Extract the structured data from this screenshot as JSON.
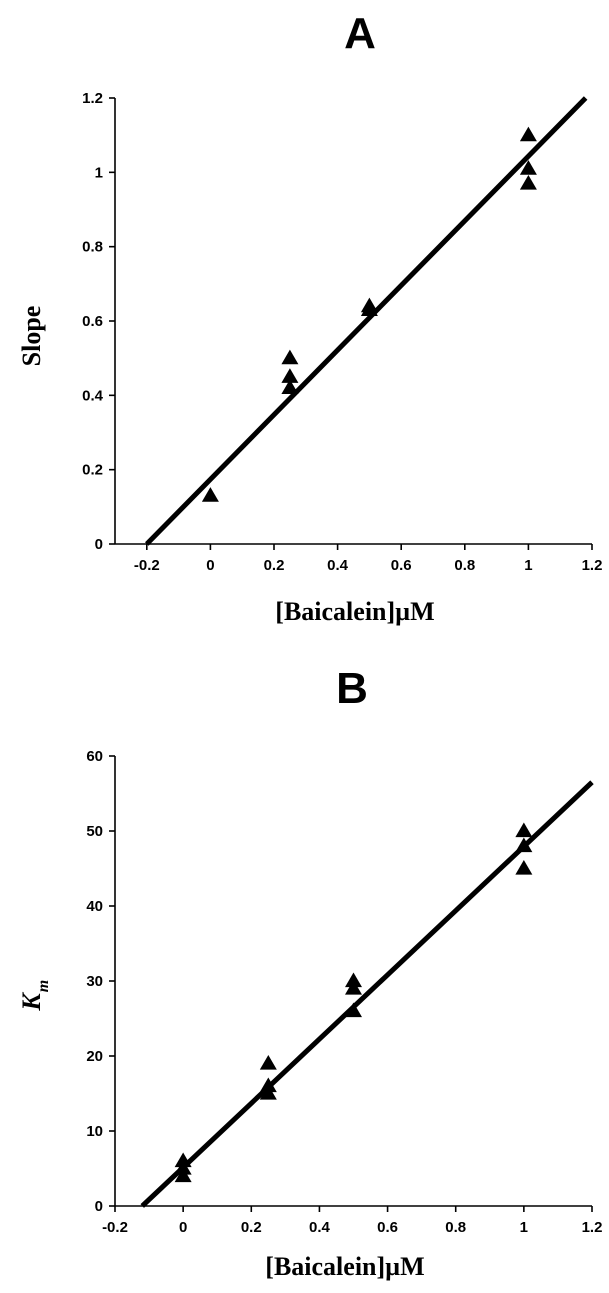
{
  "chart_data": [
    {
      "type": "scatter",
      "panel_label": "A",
      "xlabel": "[Baicalein]µM",
      "ylabel": "Slope",
      "ylabel_sub": "",
      "xlim": [
        -0.3,
        1.2
      ],
      "ylim": [
        0,
        1.2
      ],
      "xticks": [
        -0.2,
        0,
        0.2,
        0.4,
        0.6,
        0.8,
        1,
        1.2
      ],
      "xtick_labels": [
        "-0.2",
        "0",
        "0.2",
        "0.4",
        "0.6",
        "0.8",
        "1",
        "1.2"
      ],
      "yticks": [
        0,
        0.2,
        0.4,
        0.6,
        0.8,
        1,
        1.2
      ],
      "ytick_labels": [
        "0",
        "0.2",
        "0.4",
        "0.6",
        "0.8",
        "1",
        "1.2"
      ],
      "grid": false,
      "marker": "triangle",
      "points": [
        {
          "x": 0,
          "y": 0.13
        },
        {
          "x": 0.25,
          "y": 0.5
        },
        {
          "x": 0.25,
          "y": 0.45
        },
        {
          "x": 0.25,
          "y": 0.42
        },
        {
          "x": 0.5,
          "y": 0.64
        },
        {
          "x": 0.5,
          "y": 0.63
        },
        {
          "x": 1,
          "y": 1.1
        },
        {
          "x": 1,
          "y": 1.01
        },
        {
          "x": 1,
          "y": 0.97
        }
      ],
      "fit_line": {
        "x": [
          -0.2,
          1.18
        ],
        "y": [
          0,
          1.2
        ]
      }
    },
    {
      "type": "scatter",
      "panel_label": "B",
      "xlabel": "[Baicalein]µM",
      "ylabel": "K",
      "ylabel_sub": "m",
      "xlim": [
        -0.2,
        1.2
      ],
      "ylim": [
        0,
        60
      ],
      "xticks": [
        -0.2,
        0,
        0.2,
        0.4,
        0.6,
        0.8,
        1,
        1.2
      ],
      "xtick_labels": [
        "-0.2",
        "0",
        "0.2",
        "0.4",
        "0.6",
        "0.8",
        "1",
        "1.2"
      ],
      "yticks": [
        0,
        10,
        20,
        30,
        40,
        50,
        60
      ],
      "ytick_labels": [
        "0",
        "10",
        "20",
        "30",
        "40",
        "50",
        "60"
      ],
      "grid": false,
      "marker": "triangle",
      "points": [
        {
          "x": 0,
          "y": 6
        },
        {
          "x": 0,
          "y": 5
        },
        {
          "x": 0,
          "y": 4
        },
        {
          "x": 0.25,
          "y": 19
        },
        {
          "x": 0.25,
          "y": 16
        },
        {
          "x": 0.25,
          "y": 15
        },
        {
          "x": 0.5,
          "y": 30
        },
        {
          "x": 0.5,
          "y": 29
        },
        {
          "x": 0.5,
          "y": 26
        },
        {
          "x": 1,
          "y": 50
        },
        {
          "x": 1,
          "y": 48
        },
        {
          "x": 1,
          "y": 45
        }
      ],
      "fit_line": {
        "x": [
          -0.12,
          1.2
        ],
        "y": [
          0,
          56.5
        ]
      }
    }
  ]
}
